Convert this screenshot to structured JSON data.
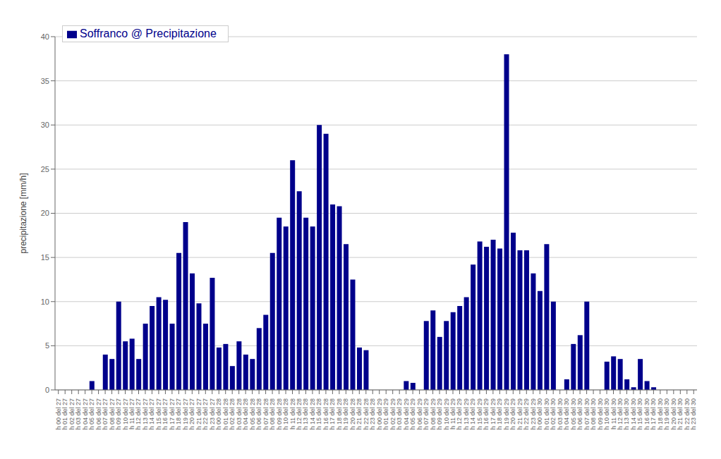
{
  "chart_data": {
    "type": "bar",
    "y_label": "precipitazione [mm/h]",
    "categories": [
      "h 00\ndel\n27",
      "h 01\ndel\n27",
      "h 02\ndel\n27",
      "h 03\ndel\n27",
      "h 04\ndel\n27",
      "h 05\ndel\n27",
      "h 06\ndel\n27",
      "h 07\ndel\n27",
      "h 08\ndel\n27",
      "h 09\ndel\n27",
      "h 10\ndel\n27",
      "h 11\ndel\n27",
      "h 12\ndel\n27",
      "h 13\ndel\n27",
      "h 14\ndel\n27",
      "h 15\ndel\n27",
      "h 16\ndel\n27",
      "h 17\ndel\n27",
      "h 18\ndel\n27",
      "h 19\ndel\n27",
      "h 20\ndel\n27",
      "h 21\ndel\n27",
      "h 22\ndel\n27",
      "h 23\ndel\n27",
      "h 00\ndel\n28",
      "h 01\ndel\n28",
      "h 02\ndel\n28",
      "h 03\ndel\n28",
      "h 04\ndel\n28",
      "h 05\ndel\n28",
      "h 06\ndel\n28",
      "h 07\ndel\n28",
      "h 08\ndel\n28",
      "h 09\ndel\n28",
      "h 10\ndel\n28",
      "h 11\ndel\n28",
      "h 12\ndel\n28",
      "h 13\ndel\n28",
      "h 14\ndel\n28",
      "h 15\ndel\n28",
      "h 16\ndel\n28",
      "h 17\ndel\n28",
      "h 18\ndel\n28",
      "h 19\ndel\n28",
      "h 20\ndel\n28",
      "h 21\ndel\n28",
      "h 22\ndel\n28",
      "h 23\ndel\n28",
      "h 00\ndel\n29",
      "h 01\ndel\n29",
      "h 02\ndel\n29",
      "h 03\ndel\n29",
      "h 04\ndel\n29",
      "h 05\ndel\n29",
      "h 06\ndel\n29",
      "h 07\ndel\n29",
      "h 08\ndel\n29",
      "h 09\ndel\n29",
      "h 10\ndel\n29",
      "h 11\ndel\n29",
      "h 12\ndel\n29",
      "h 13\ndel\n29",
      "h 14\ndel\n29",
      "h 15\ndel\n29",
      "h 16\ndel\n29",
      "h 17\ndel\n29",
      "h 18\ndel\n29",
      "h 19\ndel\n29",
      "h 20\ndel\n29",
      "h 21\ndel\n29",
      "h 22\ndel\n29",
      "h 23\ndel\n29",
      "h 00\ndel\n30",
      "h 01\ndel\n30",
      "h 02\ndel\n30",
      "h 03\ndel\n30",
      "h 04\ndel\n30",
      "h 05\ndel\n30",
      "h 06\ndel\n30",
      "h 07\ndel\n30",
      "h 08\ndel\n30",
      "h 09\ndel\n30",
      "h 10\ndel\n30",
      "h 11\ndel\n30",
      "h 12\ndel\n30",
      "h 13\ndel\n30",
      "h 14\ndel\n30",
      "h 15\ndel\n30",
      "h 16\ndel\n30",
      "h 17\ndel\n30",
      "h 18\ndel\n30",
      "h 19\ndel\n30",
      "h 20\ndel\n30",
      "h 21\ndel\n30",
      "h 22\ndel\n30",
      "h 23\ndel\n30"
    ],
    "series": [
      {
        "name": "Soffranco @ Precipitazione",
        "color": "#00008B",
        "values": [
          0.0,
          0.0,
          0.0,
          0.0,
          0.0,
          1.0,
          0.0,
          4.0,
          3.5,
          10.0,
          5.5,
          5.8,
          3.5,
          7.5,
          9.5,
          10.5,
          10.2,
          7.5,
          15.5,
          19.0,
          13.2,
          9.8,
          7.5,
          12.7,
          4.8,
          5.2,
          2.7,
          5.5,
          4.0,
          3.5,
          7.0,
          8.5,
          15.5,
          19.5,
          18.5,
          26.0,
          22.5,
          19.5,
          18.5,
          30.0,
          29.0,
          21.0,
          20.8,
          16.5,
          12.5,
          4.8,
          4.5,
          0.0,
          0.0,
          0.0,
          0.0,
          0.0,
          1.0,
          0.8,
          0.0,
          7.8,
          9.0,
          6.0,
          7.8,
          8.8,
          9.5,
          10.5,
          14.2,
          16.8,
          16.2,
          17.0,
          16.0,
          38.0,
          17.8,
          15.8,
          15.8,
          13.2,
          11.2,
          16.5,
          10.0,
          0.0,
          1.2,
          5.2,
          6.2,
          10.0,
          0.0,
          0.0,
          3.2,
          3.8,
          3.5,
          1.2,
          0.3,
          3.5,
          1.0,
          0.3,
          0.0,
          0.0,
          0.0,
          0.0,
          0.0,
          0.0
        ]
      }
    ],
    "ylim": [
      0,
      40
    ],
    "yticks": [
      0,
      5,
      10,
      15,
      20,
      25,
      30,
      35,
      40
    ],
    "grid": true,
    "legend": "upper left"
  }
}
